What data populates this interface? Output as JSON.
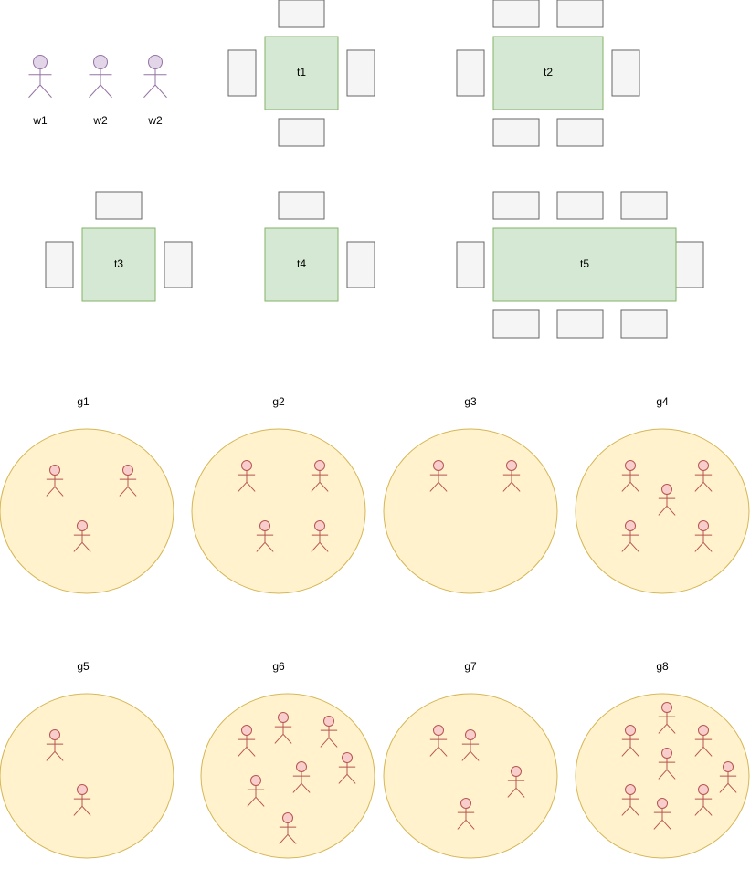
{
  "colors": {
    "waiter_fill": "#e1d5e7",
    "waiter_stroke": "#9673a6",
    "table_fill": "#d5e8d4",
    "table_stroke": "#82b366",
    "chair_fill": "#f5f5f5",
    "chair_stroke": "#666666",
    "group_fill": "#fff2cc",
    "group_stroke": "#d6b656",
    "guest_fill": "#f8cecc",
    "guest_stroke": "#b85450"
  },
  "waiters": [
    {
      "label": "w1"
    },
    {
      "label": "w2"
    },
    {
      "label": "w2"
    }
  ],
  "tables": [
    {
      "label": "t1"
    },
    {
      "label": "t2"
    },
    {
      "label": "t3"
    },
    {
      "label": "t4"
    },
    {
      "label": "t5"
    }
  ],
  "groups": [
    {
      "label": "g1",
      "guests": 3
    },
    {
      "label": "g2",
      "guests": 4
    },
    {
      "label": "g3",
      "guests": 2
    },
    {
      "label": "g4",
      "guests": 5
    },
    {
      "label": "g5",
      "guests": 2
    },
    {
      "label": "g6",
      "guests": 7
    },
    {
      "label": "g7",
      "guests": 4
    },
    {
      "label": "g8",
      "guests": 8
    }
  ]
}
